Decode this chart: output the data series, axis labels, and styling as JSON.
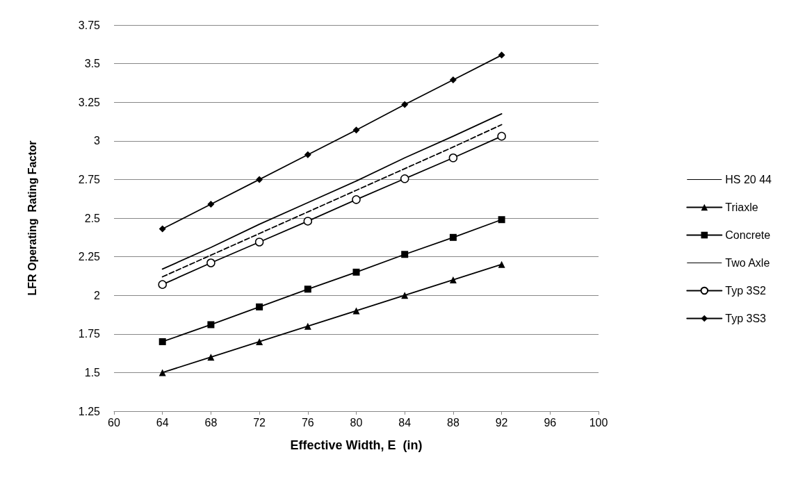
{
  "chart_data": {
    "type": "line",
    "xlabel": "Effective Width, E  (in)",
    "ylabel": "LFR Operating  Rating Factor",
    "x": [
      64,
      68,
      72,
      76,
      80,
      84,
      88,
      92
    ],
    "xlim": [
      60,
      100
    ],
    "xticks": [
      60,
      64,
      68,
      72,
      76,
      80,
      84,
      88,
      92,
      96,
      100
    ],
    "ylim": [
      1.25,
      3.75
    ],
    "yticks": [
      1.25,
      1.5,
      1.75,
      2,
      2.25,
      2.5,
      2.75,
      3,
      3.25,
      3.5,
      3.75
    ],
    "grid": "y",
    "legend": "right",
    "series": [
      {
        "name": "HS 20 44",
        "color": "#000000",
        "marker": "none",
        "line_style": "solid",
        "values": [
          2.17,
          2.31,
          2.46,
          2.6,
          2.74,
          2.89,
          3.03,
          3.175
        ]
      },
      {
        "name": "Triaxle",
        "color": "#000000",
        "marker": "triangle",
        "line_style": "solid",
        "values": [
          1.5,
          1.6,
          1.7,
          1.8,
          1.9,
          2.0,
          2.1,
          2.2
        ]
      },
      {
        "name": "Concrete",
        "color": "#000000",
        "marker": "square",
        "line_style": "solid",
        "values": [
          1.7,
          1.81,
          1.925,
          2.04,
          2.15,
          2.265,
          2.375,
          2.49
        ]
      },
      {
        "name": "Two Axle",
        "color": "#000000",
        "marker": "none",
        "line_style": "dashed",
        "values": [
          2.12,
          2.26,
          2.4,
          2.54,
          2.68,
          2.82,
          2.96,
          3.105
        ]
      },
      {
        "name": "Typ 3S2",
        "color": "#000000",
        "marker": "circle",
        "line_style": "solid",
        "values": [
          2.07,
          2.21,
          2.345,
          2.48,
          2.62,
          2.755,
          2.89,
          3.03
        ]
      },
      {
        "name": "Typ 3S3",
        "color": "#000000",
        "marker": "diamond",
        "line_style": "solid",
        "values": [
          2.43,
          2.59,
          2.75,
          2.91,
          3.07,
          3.235,
          3.395,
          3.555
        ]
      }
    ]
  }
}
